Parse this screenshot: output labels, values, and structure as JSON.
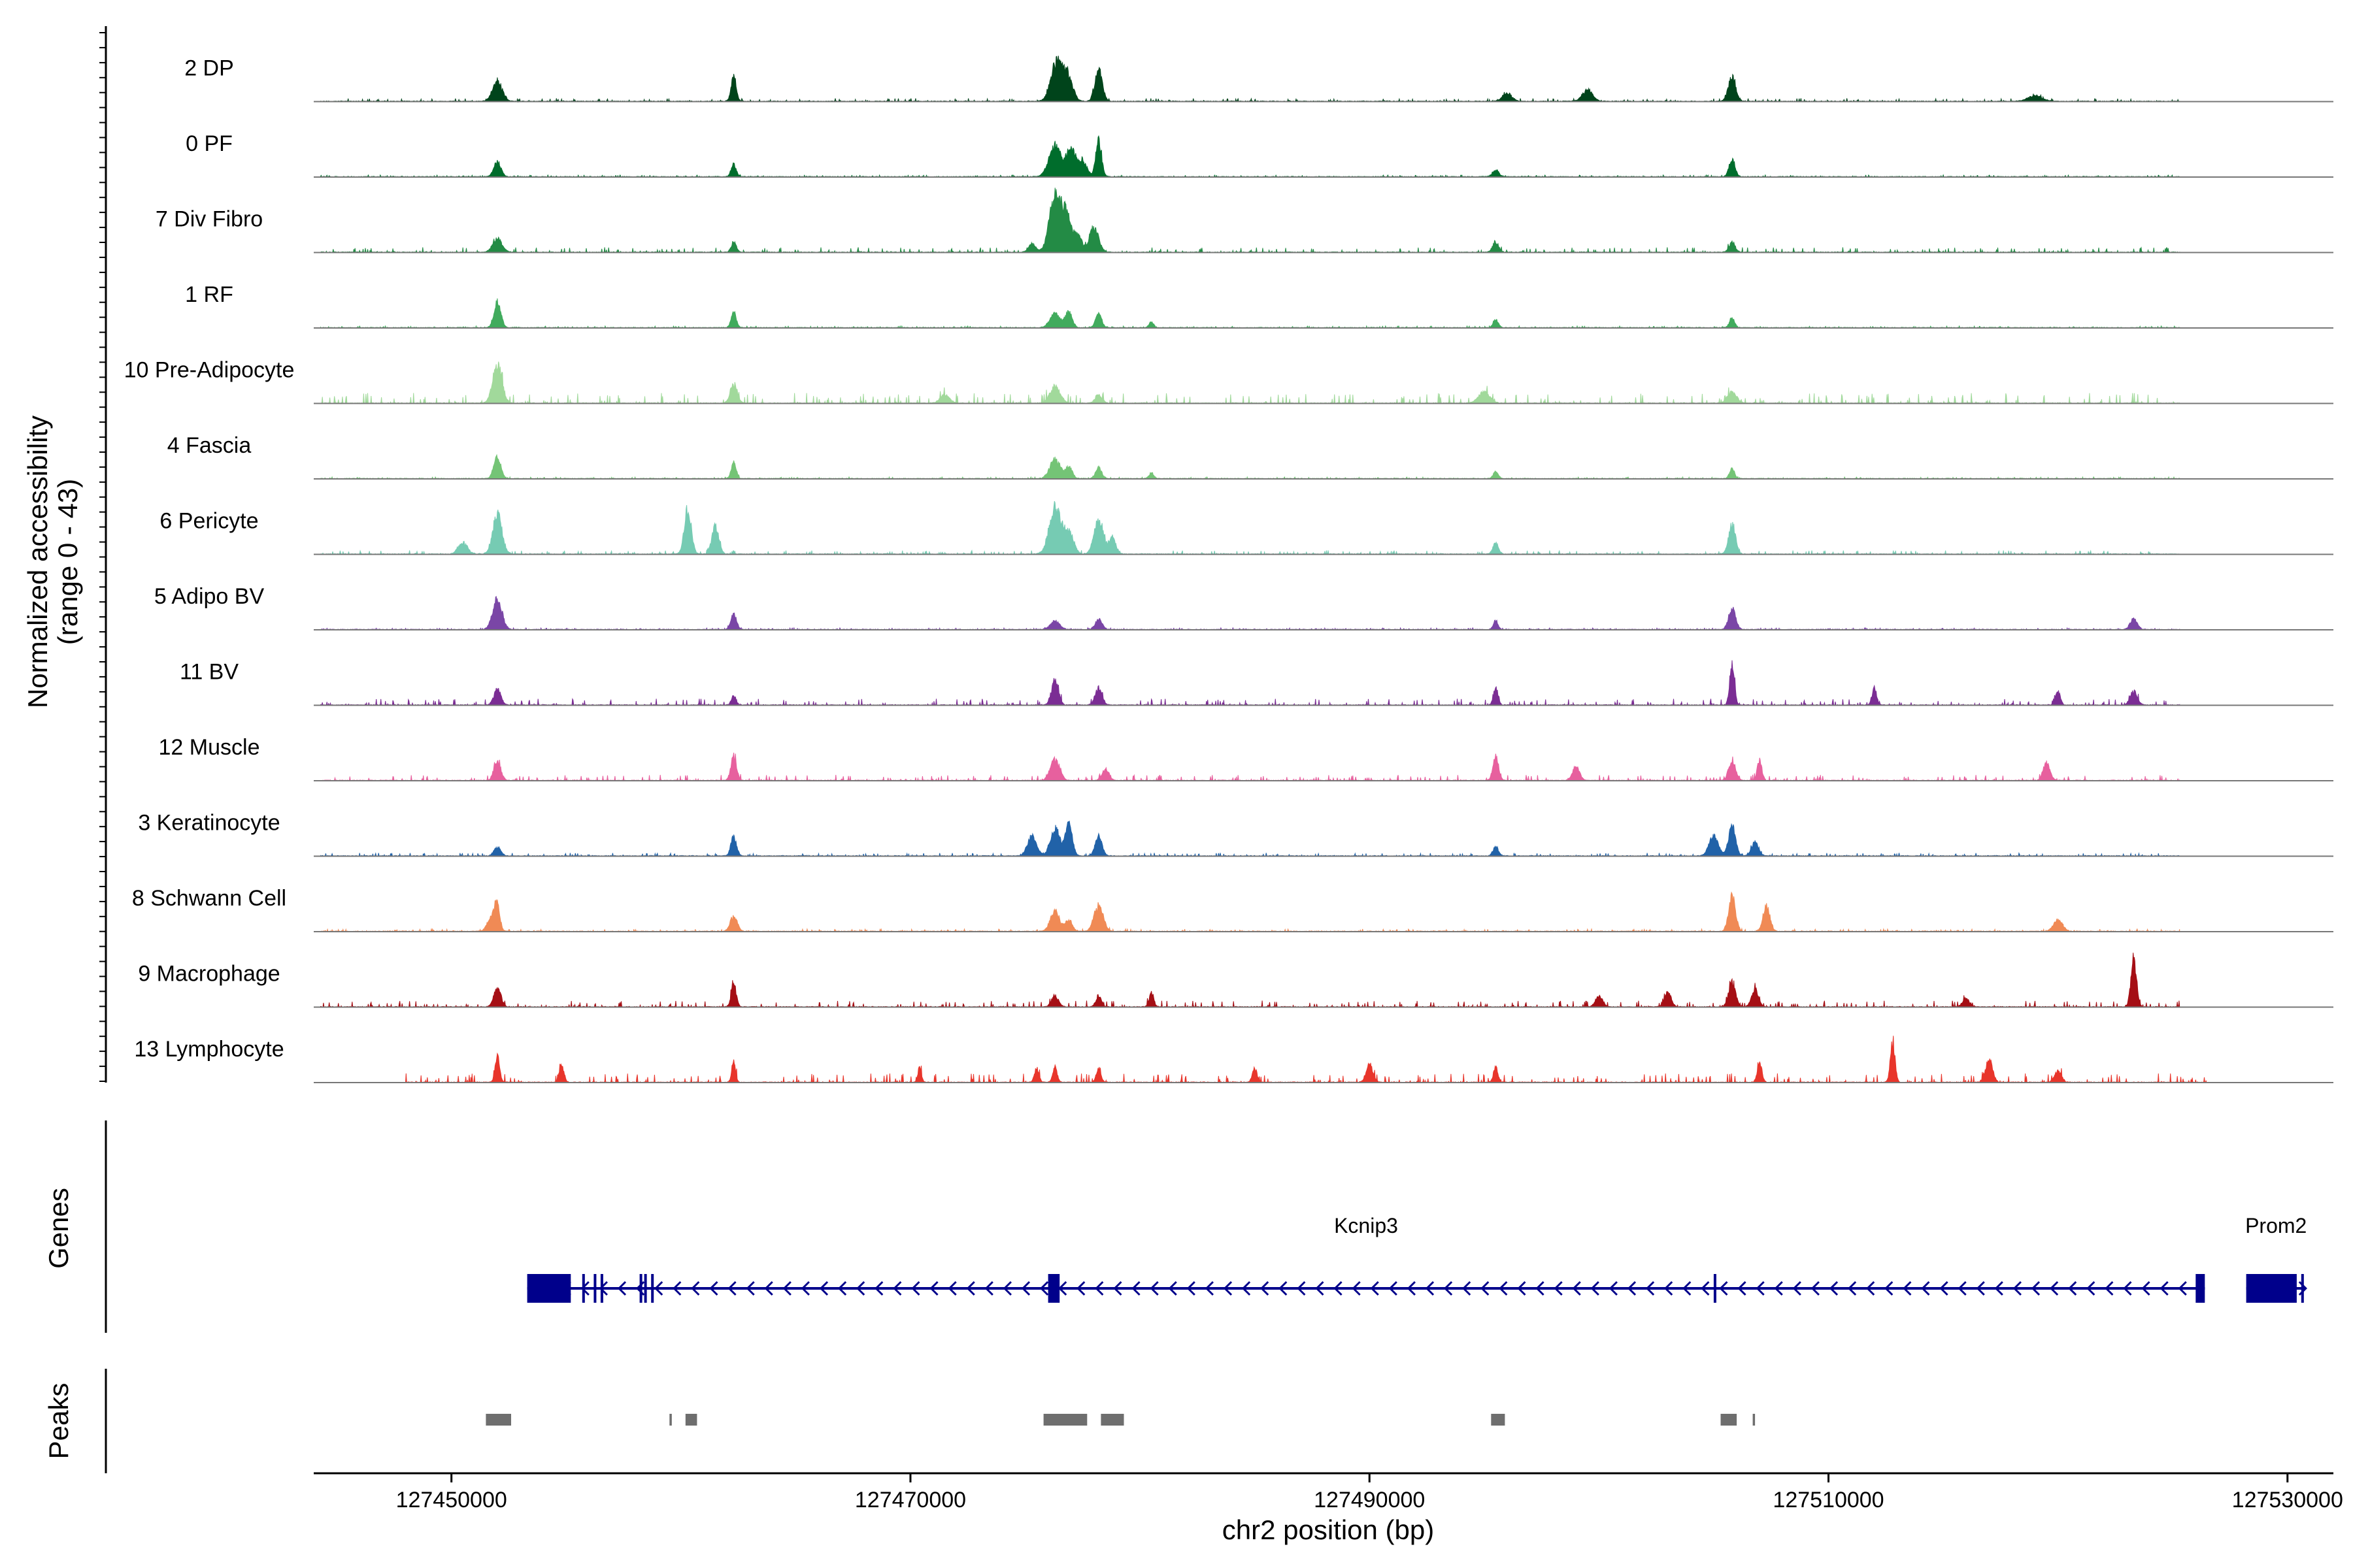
{
  "chart_data": {
    "type": "area",
    "title": "",
    "ylabel": "Normalized accessibility",
    "ylabel_range": "(range 0 - 43)",
    "xlabel": "chr2 position (bp)",
    "xlim": [
      127444000,
      127532000
    ],
    "ylim": [
      0,
      43
    ],
    "x_ticks": [
      127450000,
      127470000,
      127490000,
      127510000,
      127530000
    ],
    "x_tick_labels": [
      "127450000",
      "127470000",
      "127490000",
      "127510000",
      "127530000"
    ],
    "panel_labels": {
      "genes": "Genes",
      "peaks": "Peaks"
    },
    "series": [
      {
        "name": "2 DP",
        "color": "#00441b",
        "noise": 0.05,
        "start": 127444300,
        "end": 127525300,
        "peaks": [
          [
            127452000,
            0.37,
            200
          ],
          [
            127462300,
            0.42,
            110
          ],
          [
            127476400,
            0.72,
            260
          ],
          [
            127476900,
            0.35,
            200
          ],
          [
            127478200,
            0.58,
            160
          ],
          [
            127496000,
            0.15,
            200
          ],
          [
            127499500,
            0.2,
            220
          ],
          [
            127505800,
            0.42,
            160
          ],
          [
            127519000,
            0.1,
            300
          ]
        ]
      },
      {
        "name": "0 PF",
        "color": "#006d2c",
        "noise": 0.03,
        "start": 127444300,
        "end": 127525300,
        "peaks": [
          [
            127452000,
            0.27,
            150
          ],
          [
            127462300,
            0.22,
            110
          ],
          [
            127476300,
            0.55,
            260
          ],
          [
            127477000,
            0.52,
            200
          ],
          [
            127477500,
            0.28,
            180
          ],
          [
            127478200,
            0.62,
            130
          ],
          [
            127495500,
            0.12,
            140
          ],
          [
            127505800,
            0.31,
            130
          ]
        ]
      },
      {
        "name": "7 Div Fibro",
        "color": "#238b45",
        "noise": 0.08,
        "start": 127444300,
        "end": 127525300,
        "peaks": [
          [
            127452000,
            0.25,
            200
          ],
          [
            127462300,
            0.18,
            110
          ],
          [
            127475300,
            0.15,
            150
          ],
          [
            127476300,
            0.95,
            250
          ],
          [
            127476800,
            0.6,
            220
          ],
          [
            127477300,
            0.3,
            160
          ],
          [
            127478000,
            0.45,
            200
          ],
          [
            127495500,
            0.18,
            130
          ],
          [
            127505800,
            0.18,
            130
          ]
        ]
      },
      {
        "name": "1 RF",
        "color": "#41ab5d",
        "noise": 0.03,
        "start": 127444300,
        "end": 127525300,
        "peaks": [
          [
            127452000,
            0.45,
            150
          ],
          [
            127462300,
            0.28,
            110
          ],
          [
            127476300,
            0.25,
            220
          ],
          [
            127476900,
            0.28,
            150
          ],
          [
            127478200,
            0.25,
            130
          ],
          [
            127480500,
            0.1,
            100
          ],
          [
            127495500,
            0.15,
            110
          ],
          [
            127505800,
            0.18,
            110
          ]
        ]
      },
      {
        "name": "10 Pre-Adipocyte",
        "color": "#a1d99b",
        "noise": 0.16,
        "start": 127444300,
        "end": 127525300,
        "peaks": [
          [
            127452000,
            0.7,
            200
          ],
          [
            127462300,
            0.35,
            150
          ],
          [
            127471500,
            0.15,
            200
          ],
          [
            127476300,
            0.3,
            220
          ],
          [
            127478200,
            0.15,
            150
          ],
          [
            127495000,
            0.2,
            250
          ],
          [
            127505800,
            0.2,
            200
          ]
        ]
      },
      {
        "name": "4 Fascia",
        "color": "#74c476",
        "noise": 0.03,
        "start": 127444300,
        "end": 127525300,
        "peaks": [
          [
            127452000,
            0.4,
            150
          ],
          [
            127462300,
            0.28,
            110
          ],
          [
            127476300,
            0.35,
            220
          ],
          [
            127476900,
            0.2,
            150
          ],
          [
            127478200,
            0.2,
            130
          ],
          [
            127480500,
            0.1,
            100
          ],
          [
            127495500,
            0.12,
            110
          ],
          [
            127505800,
            0.18,
            110
          ]
        ]
      },
      {
        "name": "6 Pericyte",
        "color": "#76cbb3",
        "noise": 0.06,
        "start": 127444300,
        "end": 127525300,
        "peaks": [
          [
            127452000,
            0.7,
            200
          ],
          [
            127450500,
            0.2,
            200
          ],
          [
            127460300,
            0.8,
            150
          ],
          [
            127461500,
            0.5,
            150
          ],
          [
            127476300,
            0.85,
            250
          ],
          [
            127476900,
            0.4,
            200
          ],
          [
            127478200,
            0.6,
            200
          ],
          [
            127478800,
            0.3,
            150
          ],
          [
            127495500,
            0.2,
            120
          ],
          [
            127505800,
            0.5,
            150
          ]
        ]
      },
      {
        "name": "5 Adipo BV",
        "color": "#7a46a6",
        "noise": 0.03,
        "start": 127444300,
        "end": 127525300,
        "peaks": [
          [
            127452000,
            0.55,
            200
          ],
          [
            127462300,
            0.3,
            120
          ],
          [
            127476300,
            0.15,
            200
          ],
          [
            127478200,
            0.18,
            150
          ],
          [
            127495500,
            0.15,
            100
          ],
          [
            127505800,
            0.38,
            150
          ],
          [
            127523300,
            0.2,
            150
          ]
        ]
      },
      {
        "name": "11 BV",
        "color": "#7b2d94",
        "noise": 0.1,
        "start": 127444300,
        "end": 127525300,
        "peaks": [
          [
            127452000,
            0.28,
            150
          ],
          [
            127462300,
            0.18,
            100
          ],
          [
            127476300,
            0.45,
            150
          ],
          [
            127478200,
            0.3,
            150
          ],
          [
            127495500,
            0.3,
            100
          ],
          [
            127505800,
            0.75,
            100
          ],
          [
            127512000,
            0.3,
            100
          ],
          [
            127520000,
            0.25,
            100
          ],
          [
            127523300,
            0.25,
            150
          ]
        ]
      },
      {
        "name": "12 Muscle",
        "color": "#e7609e",
        "noise": 0.09,
        "start": 127444300,
        "end": 127525300,
        "peaks": [
          [
            127452000,
            0.35,
            150
          ],
          [
            127462300,
            0.45,
            120
          ],
          [
            127476300,
            0.38,
            200
          ],
          [
            127478500,
            0.2,
            150
          ],
          [
            127495500,
            0.45,
            120
          ],
          [
            127499000,
            0.25,
            150
          ],
          [
            127505800,
            0.35,
            150
          ],
          [
            127507000,
            0.35,
            100
          ],
          [
            127519500,
            0.3,
            150
          ]
        ]
      },
      {
        "name": "3 Keratinocyte",
        "color": "#2162a8",
        "noise": 0.05,
        "start": 127444300,
        "end": 127525300,
        "peaks": [
          [
            127452000,
            0.15,
            150
          ],
          [
            127462300,
            0.35,
            120
          ],
          [
            127475300,
            0.35,
            200
          ],
          [
            127476300,
            0.5,
            200
          ],
          [
            127476900,
            0.55,
            150
          ],
          [
            127478200,
            0.35,
            150
          ],
          [
            127495500,
            0.15,
            120
          ],
          [
            127505000,
            0.35,
            200
          ],
          [
            127505800,
            0.55,
            150
          ],
          [
            127506800,
            0.25,
            150
          ]
        ]
      },
      {
        "name": "8 Schwann Cell",
        "color": "#f08a55",
        "noise": 0.04,
        "start": 127444300,
        "end": 127525300,
        "peaks": [
          [
            127451800,
            0.3,
            200
          ],
          [
            127452000,
            0.4,
            100
          ],
          [
            127462300,
            0.28,
            150
          ],
          [
            127476300,
            0.35,
            200
          ],
          [
            127476900,
            0.2,
            150
          ],
          [
            127478200,
            0.45,
            200
          ],
          [
            127505800,
            0.62,
            150
          ],
          [
            127507300,
            0.45,
            150
          ],
          [
            127520000,
            0.2,
            200
          ]
        ]
      },
      {
        "name": "9 Macrophage",
        "color": "#a50f15",
        "noise": 0.1,
        "start": 127444300,
        "end": 127525300,
        "peaks": [
          [
            127452000,
            0.35,
            150
          ],
          [
            127462300,
            0.4,
            110
          ],
          [
            127476300,
            0.2,
            150
          ],
          [
            127478200,
            0.2,
            120
          ],
          [
            127480500,
            0.25,
            100
          ],
          [
            127500000,
            0.2,
            150
          ],
          [
            127503000,
            0.25,
            150
          ],
          [
            127505800,
            0.45,
            150
          ],
          [
            127506800,
            0.3,
            150
          ],
          [
            127516000,
            0.15,
            150
          ],
          [
            127523300,
            0.85,
            120
          ]
        ]
      },
      {
        "name": "13 Lymphocyte",
        "color": "#e8352b",
        "noise": 0.14,
        "start": 127448000,
        "end": 127526500,
        "peaks": [
          [
            127452000,
            0.45,
            100
          ],
          [
            127454800,
            0.3,
            100
          ],
          [
            127462300,
            0.4,
            80
          ],
          [
            127470400,
            0.25,
            80
          ],
          [
            127475500,
            0.25,
            100
          ],
          [
            127476300,
            0.25,
            100
          ],
          [
            127478200,
            0.25,
            100
          ],
          [
            127485000,
            0.25,
            100
          ],
          [
            127490000,
            0.3,
            150
          ],
          [
            127495500,
            0.25,
            100
          ],
          [
            127507000,
            0.35,
            100
          ],
          [
            127512800,
            0.7,
            100
          ],
          [
            127517000,
            0.4,
            150
          ],
          [
            127520000,
            0.2,
            150
          ]
        ]
      }
    ],
    "genes": [
      {
        "name": "Kcnip3",
        "strand": "-",
        "start": 127453300,
        "end": 127526400,
        "exons": [
          [
            127453300,
            127455200
          ],
          [
            127455700,
            127455800
          ],
          [
            127456200,
            127456300
          ],
          [
            127456500,
            127456600
          ],
          [
            127458200,
            127458300
          ],
          [
            127458400,
            127458500
          ],
          [
            127458700,
            127458800
          ],
          [
            127476000,
            127476500
          ],
          [
            127505000,
            127505100
          ],
          [
            127526000,
            127526400
          ]
        ]
      },
      {
        "name": "Prom2",
        "strand": "+",
        "start": 127528200,
        "end": 127530800,
        "exons": [
          [
            127528200,
            127530400
          ],
          [
            127530600,
            127530700
          ]
        ]
      }
    ],
    "peaks": [
      [
        127451500,
        127452600
      ],
      [
        127459500,
        127459600
      ],
      [
        127460200,
        127460700
      ],
      [
        127475800,
        127477700
      ],
      [
        127478300,
        127479300
      ],
      [
        127495300,
        127495900
      ],
      [
        127505300,
        127506000
      ],
      [
        127506700,
        127506800
      ]
    ]
  }
}
